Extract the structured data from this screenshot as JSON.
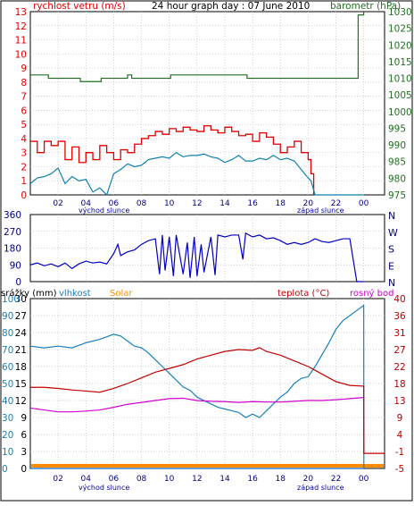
{
  "colors": {
    "wind_speed": "#e00000",
    "wind_gust": "#e00000",
    "wind_avg": "#1080b0",
    "pressure": "#207020",
    "wind_dir": "#0000c0",
    "humidity": "#1880c0",
    "temperature": "#c00000",
    "dewpoint": "#d000d0",
    "rain": "#1060c0",
    "solar": "#ff8c00",
    "frame": "#000000",
    "grid": "#c0c0c0"
  },
  "chart_data": [
    {
      "type": "line",
      "title": "24 hour graph day : 07 June 2010",
      "left_axis_label": "rychlost vetru (m/s)",
      "right_axis_label": "barometr (hPa)",
      "x_ticks": [
        "02",
        "04",
        "06",
        "08",
        "10",
        "12",
        "14",
        "16",
        "18",
        "20",
        "22",
        "00"
      ],
      "sunrise_label": "východ slunce",
      "sunset_label": "západ slunce",
      "sunrise_hour": 4.8,
      "sunset_hour": 20.1,
      "xlim": [
        0,
        25.5
      ],
      "ylim_left": [
        0,
        13
      ],
      "ylim_right": [
        975,
        1030
      ],
      "left_ticks": [
        "0",
        "1",
        "2",
        "3",
        "4",
        "5",
        "6",
        "7",
        "8",
        "9",
        "10",
        "11",
        "12",
        "13"
      ],
      "right_ticks": [
        "975",
        "980",
        "985",
        "990",
        "995",
        "1000",
        "1005",
        "1010",
        "1015",
        "1020",
        "1025",
        "1030"
      ],
      "series": [
        {
          "name": "gust",
          "x": [
            0,
            0.5,
            1,
            1.5,
            2,
            2.5,
            3,
            3.5,
            4,
            4.5,
            5,
            5.5,
            6,
            6.5,
            7,
            7.5,
            8,
            8.5,
            9,
            9.5,
            10,
            10.5,
            11,
            11.5,
            12,
            12.5,
            13,
            13.5,
            14,
            14.5,
            15,
            15.5,
            16,
            16.5,
            17,
            17.5,
            18,
            18.5,
            19,
            19.5,
            20,
            20.2,
            20.4
          ],
          "values": [
            3.8,
            3,
            3.8,
            3.5,
            3.8,
            2.5,
            3.4,
            2.3,
            3,
            2.5,
            3.5,
            3,
            2.5,
            3.2,
            3,
            3.6,
            4,
            4.2,
            4.5,
            4.3,
            4.7,
            4.5,
            4.8,
            4.6,
            4.5,
            4.9,
            4.6,
            4.4,
            4.8,
            4.5,
            4.2,
            4.3,
            3.8,
            4.4,
            4.1,
            3.6,
            3,
            3.4,
            3.8,
            3,
            2.5,
            1.5,
            0
          ]
        },
        {
          "name": "average",
          "x": [
            0,
            0.5,
            1,
            1.5,
            2,
            2.5,
            3,
            3.5,
            4,
            4.5,
            5,
            5.5,
            6,
            6.5,
            7,
            7.5,
            8,
            8.5,
            9,
            9.5,
            10,
            10.5,
            11,
            11.5,
            12,
            12.5,
            13,
            13.5,
            14,
            14.5,
            15,
            15.5,
            16,
            16.5,
            17,
            17.5,
            18,
            18.5,
            19,
            19.5,
            20,
            20.2,
            20.5,
            21,
            22,
            23,
            24
          ],
          "values": [
            0.8,
            1.2,
            1.3,
            1.5,
            1.9,
            0.8,
            1.3,
            1,
            1.1,
            0.2,
            0.5,
            0,
            1.5,
            1.8,
            2.2,
            2,
            2.1,
            2.5,
            2.6,
            2.7,
            2.6,
            3,
            2.7,
            2.8,
            2.8,
            2.9,
            2.7,
            2.6,
            2.3,
            2.5,
            2.8,
            2.4,
            2.4,
            2.6,
            2.5,
            2.8,
            2.5,
            2.6,
            2.4,
            1.8,
            1.2,
            1,
            0,
            0,
            0,
            0,
            0
          ]
        },
        {
          "name": "pressure",
          "x": [
            0,
            1.2,
            1.3,
            3.5,
            3.6,
            5,
            5.1,
            6.9,
            7,
            7.2,
            7.3,
            10,
            10.1,
            15.5,
            15.6,
            18.5,
            20,
            20.1,
            23.5,
            23.6,
            24
          ],
          "values": [
            1011,
            1011,
            1010,
            1010,
            1009,
            1009,
            1010,
            1010,
            1011,
            1011,
            1010,
            1010,
            1011,
            1011,
            1010,
            1010,
            1010,
            1010,
            1010,
            1029,
            1030
          ]
        }
      ]
    },
    {
      "type": "line",
      "xlim": [
        0,
        25.5
      ],
      "ylim": [
        0,
        360
      ],
      "left_ticks": [
        "0",
        "90",
        "180",
        "270",
        "360"
      ],
      "right_ticks": [
        "N",
        "W",
        "S",
        "E",
        "N"
      ],
      "series": [
        {
          "name": "wind_direction",
          "x": [
            0,
            0.5,
            1,
            1.5,
            2,
            2.5,
            3,
            3.5,
            4,
            4.5,
            5,
            5.5,
            6,
            6.3,
            6.5,
            7,
            7.5,
            8,
            8.5,
            9,
            9.3,
            9.5,
            9.7,
            10,
            10.3,
            10.5,
            11,
            11.3,
            11.5,
            11.8,
            12,
            12.3,
            12.5,
            13,
            13.3,
            13.5,
            14,
            14.5,
            15,
            15.3,
            15.5,
            16,
            16.5,
            17,
            17.5,
            18,
            18.5,
            19,
            19.5,
            20,
            20.5,
            21,
            21.5,
            22,
            22.5,
            23,
            23.5,
            24
          ],
          "values": [
            90,
            100,
            85,
            95,
            80,
            100,
            70,
            95,
            110,
            100,
            105,
            95,
            150,
            200,
            140,
            160,
            170,
            200,
            220,
            230,
            40,
            250,
            60,
            240,
            30,
            250,
            40,
            210,
            20,
            240,
            30,
            200,
            50,
            240,
            35,
            250,
            240,
            250,
            250,
            120,
            260,
            240,
            250,
            230,
            235,
            220,
            200,
            210,
            200,
            210,
            230,
            215,
            210,
            220,
            230,
            230,
            0,
            0
          ]
        }
      ]
    },
    {
      "type": "line",
      "label_rain": "srážky (mm)",
      "label_humidity": "vlhkost",
      "label_solar": "Solar",
      "label_temperature": "teplota (°C)",
      "label_dewpoint": "rosný bod",
      "x_ticks": [
        "02",
        "04",
        "06",
        "08",
        "10",
        "12",
        "14",
        "16",
        "18",
        "20",
        "22",
        "00"
      ],
      "sunrise_label": "východ slunce",
      "sunset_label": "západ slunce",
      "xlim": [
        0,
        25.5
      ],
      "ylim_temp": [
        -5,
        40
      ],
      "rain_ticks": [
        "0",
        "3",
        "6",
        "9",
        "12",
        "15",
        "18",
        "21",
        "24",
        "27",
        "30"
      ],
      "humidity_ticks": [
        "0",
        "10",
        "20",
        "30",
        "40",
        "50",
        "60",
        "70",
        "80",
        "90",
        "100"
      ],
      "temp_ticks": [
        "-5",
        "-1",
        "4",
        "9",
        "13",
        "18",
        "22",
        "27",
        "31",
        "36",
        "40"
      ],
      "series": [
        {
          "name": "humidity",
          "x": [
            0,
            1,
            2,
            3,
            4,
            5,
            6,
            6.5,
            7,
            7.5,
            8,
            8.5,
            9,
            9.5,
            10,
            10.5,
            11,
            11.5,
            12,
            12.5,
            13,
            13.5,
            14,
            14.5,
            15,
            15.5,
            16,
            16.5,
            17,
            17.5,
            18,
            18.5,
            19,
            19.5,
            20,
            20.5,
            21,
            21.5,
            22,
            22.5,
            23,
            23.5,
            24,
            24.01
          ],
          "values": [
            72,
            71,
            72,
            71,
            74,
            76,
            79,
            78,
            75,
            72,
            71,
            68,
            64,
            60,
            56,
            52,
            48,
            46,
            42,
            40,
            38,
            36,
            35,
            34,
            33,
            30,
            32,
            30,
            34,
            38,
            42,
            45,
            50,
            53,
            54,
            60,
            67,
            74,
            82,
            87,
            90,
            93,
            96,
            0
          ]
        },
        {
          "name": "temperature",
          "x": [
            0,
            1,
            2,
            3,
            4,
            5,
            6,
            7,
            8,
            9,
            10,
            11,
            12,
            13,
            14,
            15,
            16,
            16.5,
            17,
            17.5,
            18,
            19,
            20,
            21,
            22,
            23,
            24,
            24.01,
            25.5
          ],
          "values": [
            16.5,
            16.5,
            16.2,
            15.8,
            15.5,
            15.2,
            16.2,
            17.5,
            19,
            20.5,
            21.5,
            22.5,
            24,
            25,
            26,
            26.5,
            26.3,
            27,
            26,
            25.5,
            25,
            23.5,
            22,
            20,
            18,
            17,
            16.8,
            -1,
            -1
          ]
        },
        {
          "name": "dewpoint",
          "x": [
            0,
            1,
            2,
            3,
            4,
            5,
            6,
            7,
            8,
            9,
            10,
            11,
            12,
            13,
            14,
            15,
            16,
            17,
            18,
            19,
            20,
            21,
            22,
            23,
            24
          ],
          "values": [
            11,
            10.5,
            10,
            10,
            10.2,
            10.5,
            11.2,
            12,
            12.5,
            13,
            13.5,
            13.6,
            13,
            12.8,
            12.7,
            12.5,
            12.7,
            12.6,
            12.6,
            12.8,
            13,
            13,
            13.2,
            13.5,
            13.8
          ]
        },
        {
          "name": "rain",
          "x": [
            0,
            24
          ],
          "values": [
            0,
            0
          ]
        }
      ]
    }
  ]
}
